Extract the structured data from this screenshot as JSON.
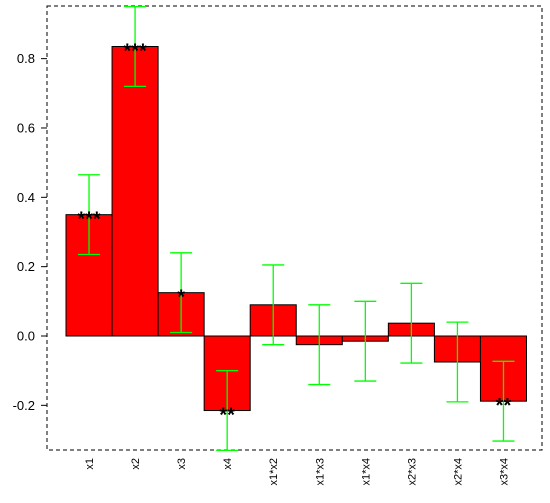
{
  "chart_data": {
    "type": "bar",
    "title": "",
    "xlabel": "",
    "ylabel": "",
    "categories": [
      "x1",
      "x2",
      "x3",
      "x4",
      "x1*x2",
      "x1*x3",
      "x1*x4",
      "x2*x3",
      "x2*x4",
      "x3*x4"
    ],
    "values": [
      0.35,
      0.835,
      0.125,
      -0.215,
      0.09,
      -0.025,
      -0.015,
      0.037,
      -0.075,
      -0.188
    ],
    "error_low": [
      0.235,
      0.72,
      0.01,
      -0.33,
      -0.025,
      -0.14,
      -0.13,
      -0.078,
      -0.19,
      -0.303
    ],
    "error_high": [
      0.465,
      0.95,
      0.24,
      -0.1,
      0.205,
      0.09,
      0.1,
      0.152,
      0.04,
      -0.073
    ],
    "significance": [
      "***",
      "***",
      "*",
      "**",
      "",
      "",
      "",
      "",
      "",
      "**"
    ],
    "yticks": [
      -0.2,
      0.0,
      0.2,
      0.4,
      0.6,
      0.8
    ],
    "ytick_labels": [
      "-0.2",
      "0.0",
      "0.2",
      "0.4",
      "0.6",
      "0.8"
    ],
    "ylim": [
      -0.33,
      0.95
    ],
    "grid": false,
    "legend": "none",
    "colors": {
      "bar_fill": "#ff0000",
      "bar_stroke": "#000000",
      "error_bar": "#00ff00",
      "frame": "#000000"
    }
  }
}
